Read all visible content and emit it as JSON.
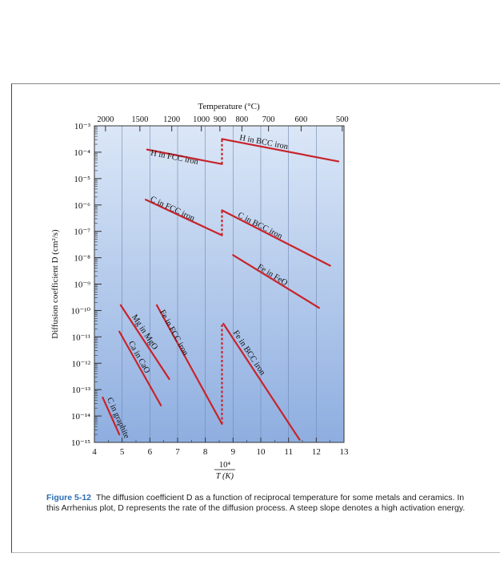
{
  "chart_data": {
    "type": "line",
    "top_axis_title": "Temperature (°C)",
    "top_ticks": [
      {
        "label": "2000",
        "t": 2000
      },
      {
        "label": "1500",
        "t": 1500
      },
      {
        "label": "1200",
        "t": 1200
      },
      {
        "label": "1000",
        "t": 1000
      },
      {
        "label": "900",
        "t": 900
      },
      {
        "label": "800",
        "t": 800
      },
      {
        "label": "700",
        "t": 700
      },
      {
        "label": "600",
        "t": 600
      },
      {
        "label": "500",
        "t": 500
      }
    ],
    "xlabel_numerator": "10⁴",
    "xlabel_denominator": "T (K)",
    "ylabel": "Diffusion coefficient D (cm²/s)",
    "xlim": [
      4,
      13
    ],
    "ylim_exponent": [
      -15,
      -3
    ],
    "x_ticks": [
      "4",
      "5",
      "6",
      "7",
      "8",
      "9",
      "10",
      "11",
      "12",
      "13"
    ],
    "y_ticks": [
      {
        "label": "10⁻³",
        "exp": -3
      },
      {
        "label": "10⁻⁴",
        "exp": -4
      },
      {
        "label": "10⁻⁵",
        "exp": -5
      },
      {
        "label": "10⁻⁶",
        "exp": -6
      },
      {
        "label": "10⁻⁷",
        "exp": -7
      },
      {
        "label": "10⁻⁸",
        "exp": -8
      },
      {
        "label": "10⁻⁹",
        "exp": -9
      },
      {
        "label": "10⁻¹⁰",
        "exp": -10
      },
      {
        "label": "10⁻¹¹",
        "exp": -11
      },
      {
        "label": "10⁻¹²",
        "exp": -12
      },
      {
        "label": "10⁻¹³",
        "exp": -13
      },
      {
        "label": "10⁻¹⁴",
        "exp": -14
      },
      {
        "label": "10⁻¹⁵",
        "exp": -15
      }
    ],
    "series": [
      {
        "name": "H in FCC iron",
        "x": [
          5.9,
          8.6
        ],
        "log_d": [
          -3.9,
          -4.45
        ]
      },
      {
        "name": "H in BCC iron",
        "x": [
          8.6,
          12.8
        ],
        "log_d": [
          -3.5,
          -4.35
        ]
      },
      {
        "name": "C in FCC iron",
        "x": [
          5.85,
          8.6
        ],
        "log_d": [
          -5.8,
          -7.15
        ]
      },
      {
        "name": "C in BCC iron",
        "x": [
          8.6,
          12.5
        ],
        "log_d": [
          -6.2,
          -8.3
        ]
      },
      {
        "name": "Fe in FeO",
        "x": [
          9.0,
          12.1
        ],
        "log_d": [
          -7.9,
          -9.9
        ]
      },
      {
        "name": "Fe in FCC iron",
        "x": [
          6.25,
          8.6
        ],
        "log_d": [
          -9.8,
          -14.3
        ]
      },
      {
        "name": "Fe in BCC iron",
        "x": [
          8.65,
          11.4
        ],
        "log_d": [
          -10.5,
          -14.9
        ]
      },
      {
        "name": "Mg in MgO",
        "x": [
          4.95,
          6.7
        ],
        "log_d": [
          -9.8,
          -12.6
        ]
      },
      {
        "name": "Ca in CaO",
        "x": [
          4.9,
          6.4
        ],
        "log_d": [
          -10.8,
          -13.6
        ]
      },
      {
        "name": "C in graphite",
        "x": [
          4.3,
          4.9
        ],
        "log_d": [
          -13.3,
          -14.7
        ]
      }
    ],
    "jumps": [
      {
        "x": 8.6,
        "log_d": [
          -4.45,
          -3.5
        ]
      },
      {
        "x": 8.6,
        "log_d": [
          -7.15,
          -6.2
        ]
      },
      {
        "x": 8.6,
        "log_d": [
          -14.3,
          -10.5
        ]
      }
    ],
    "colors": {
      "line": "#c8242b",
      "bg_top": "#dbe7f7",
      "bg_bottom": "#8eaee0"
    }
  },
  "caption": {
    "label": "Figure 5-12",
    "text": "The diffusion coefficient D as a function of reciprocal temperature for some metals and ceramics. In this Arrhenius plot, D represents the rate of the diffusion process. A steep slope denotes a high activation energy."
  }
}
